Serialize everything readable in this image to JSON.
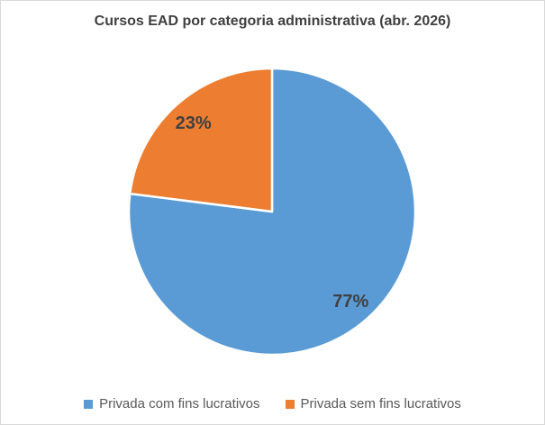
{
  "chart": {
    "title": "Cursos EAD por categoria administrativa (abr. 2026)"
  },
  "chart_data": {
    "type": "pie",
    "title": "Cursos EAD por categoria administrativa (abr. 2026)",
    "categories": [
      "Privada com fins lucrativos",
      "Privada sem fins lucrativos"
    ],
    "values": [
      77,
      23
    ],
    "unit": "%",
    "data_labels": [
      "77%",
      "23%"
    ],
    "colors": [
      "#5B9BD5",
      "#ED7D31"
    ],
    "start_angle_deg": 0,
    "direction": "clockwise",
    "legend_position": "bottom",
    "label_color": "#404040",
    "legend_text_color": "#595959",
    "slice_separator_color": "#FFFFFF"
  }
}
